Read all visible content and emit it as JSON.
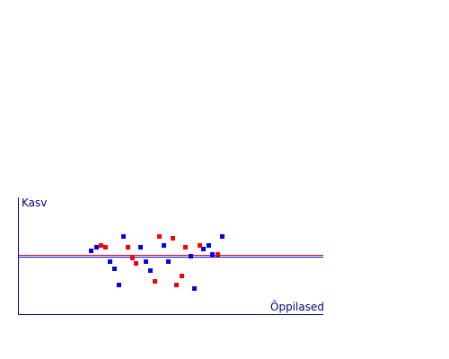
{
  "chart_data": {
    "type": "scatter",
    "ylabel": "Kasv",
    "xlabel": "Õppilased",
    "xlim": [
      0,
      34
    ],
    "ylim": [
      -1.3,
      1.3
    ],
    "ticks_shown": false,
    "grid": false,
    "colors": {
      "axis": "#0000cc",
      "label_text": "#000080",
      "series_blue": "#0000ff",
      "series_red": "#ff0000"
    },
    "reference_lines": [
      {
        "value": 0.02,
        "color": "#ff0000"
      },
      {
        "value": -0.02,
        "color": "#0000ff"
      }
    ],
    "series": [
      {
        "color_key": "series_blue",
        "points": [
          {
            "x": 8.2,
            "y": 0.12
          },
          {
            "x": 8.7,
            "y": 0.2
          },
          {
            "x": 10.2,
            "y": -0.12
          },
          {
            "x": 10.7,
            "y": -0.28
          },
          {
            "x": 11.2,
            "y": -0.64
          },
          {
            "x": 11.7,
            "y": 0.44
          },
          {
            "x": 13.7,
            "y": 0.2
          },
          {
            "x": 14.2,
            "y": -0.12
          },
          {
            "x": 14.7,
            "y": -0.32
          },
          {
            "x": 16.2,
            "y": 0.24
          },
          {
            "x": 16.7,
            "y": -0.12
          },
          {
            "x": 19.2,
            "y": 0.0
          },
          {
            "x": 19.7,
            "y": -0.72
          },
          {
            "x": 20.7,
            "y": 0.16
          },
          {
            "x": 21.2,
            "y": 0.24
          },
          {
            "x": 21.7,
            "y": 0.04
          },
          {
            "x": 22.7,
            "y": 0.44
          }
        ]
      },
      {
        "color_key": "series_red",
        "points": [
          {
            "x": 9.2,
            "y": 0.24
          },
          {
            "x": 9.7,
            "y": 0.2
          },
          {
            "x": 12.2,
            "y": 0.2
          },
          {
            "x": 12.7,
            "y": -0.04
          },
          {
            "x": 13.2,
            "y": -0.16
          },
          {
            "x": 15.2,
            "y": -0.56
          },
          {
            "x": 15.7,
            "y": 0.44
          },
          {
            "x": 17.2,
            "y": 0.4
          },
          {
            "x": 17.7,
            "y": -0.64
          },
          {
            "x": 18.2,
            "y": -0.44
          },
          {
            "x": 18.7,
            "y": 0.2
          },
          {
            "x": 20.2,
            "y": 0.24
          },
          {
            "x": 22.2,
            "y": 0.04
          }
        ]
      }
    ]
  }
}
